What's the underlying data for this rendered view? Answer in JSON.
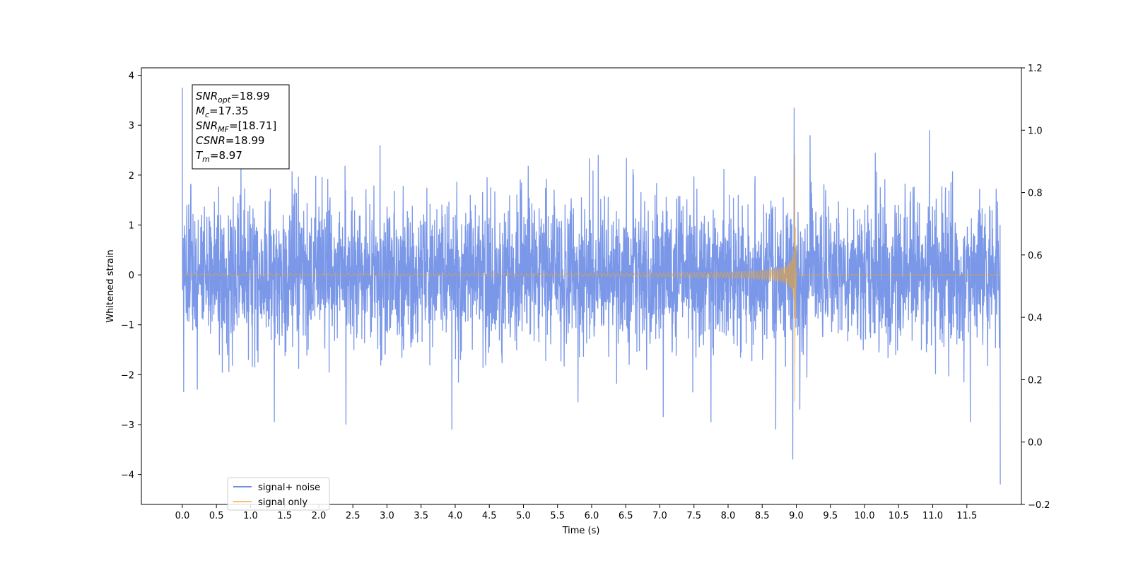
{
  "chart_data": {
    "type": "line",
    "title": "",
    "xlabel": "Time (s)",
    "ylabel": "Whitened strain",
    "xlim": [
      -0.6,
      12.3
    ],
    "ylim": [
      -4.6,
      4.15
    ],
    "ylim_right": [
      -0.2,
      1.2
    ],
    "x_ticks": [
      0.0,
      0.5,
      1.0,
      1.5,
      2.0,
      2.5,
      3.0,
      3.5,
      4.0,
      4.5,
      5.0,
      5.5,
      6.0,
      6.5,
      7.0,
      7.5,
      8.0,
      8.5,
      9.0,
      9.5,
      10.0,
      10.5,
      11.0,
      11.5
    ],
    "x_tick_labels": [
      "0.0",
      "0.5",
      "1.0",
      "1.5",
      "2.0",
      "2.5",
      "3.0",
      "3.5",
      "4.0",
      "4.5",
      "5.0",
      "5.5",
      "6.0",
      "6.5",
      "7.0",
      "7.5",
      "8.0",
      "8.5",
      "9.0",
      "9.5",
      "10.0",
      "10.5",
      "11.0",
      "11.5"
    ],
    "y_ticks": [
      -4,
      -3,
      -2,
      -1,
      0,
      1,
      2,
      3,
      4
    ],
    "y_tick_labels": [
      "−4",
      "−3",
      "−2",
      "−1",
      "0",
      "1",
      "2",
      "3",
      "4"
    ],
    "y_ticks_right": [
      -0.2,
      0.0,
      0.2,
      0.4,
      0.6,
      0.8,
      1.0,
      1.2
    ],
    "y_tick_labels_right": [
      "−0.2",
      "0.0",
      "0.2",
      "0.4",
      "0.6",
      "0.8",
      "1.0",
      "1.2"
    ],
    "grid": false,
    "legend_placement": "lower-left",
    "series": [
      {
        "name": "signal+ noise",
        "color": "#6f8ee6",
        "kind": "noise",
        "x_range": [
          0.0,
          11.99
        ],
        "noise_std": 0.75,
        "peaks": [
          {
            "x": 0.0,
            "y": 3.75
          },
          {
            "x": 0.02,
            "y": -2.35
          },
          {
            "x": 0.22,
            "y": -2.3
          },
          {
            "x": 1.35,
            "y": -2.95
          },
          {
            "x": 2.4,
            "y": -3.0
          },
          {
            "x": 2.9,
            "y": 2.6
          },
          {
            "x": 3.95,
            "y": -3.1
          },
          {
            "x": 5.8,
            "y": -2.55
          },
          {
            "x": 7.05,
            "y": -2.85
          },
          {
            "x": 7.75,
            "y": -2.95
          },
          {
            "x": 8.7,
            "y": -3.1
          },
          {
            "x": 8.95,
            "y": -3.7
          },
          {
            "x": 8.97,
            "y": 3.35
          },
          {
            "x": 9.05,
            "y": -2.7
          },
          {
            "x": 9.2,
            "y": 2.8
          },
          {
            "x": 10.95,
            "y": 2.9
          },
          {
            "x": 11.55,
            "y": -2.95
          },
          {
            "x": 11.99,
            "y": -4.2
          }
        ]
      },
      {
        "name": "signal only",
        "color": "#f5a623",
        "kind": "chirp",
        "x_range": [
          0.0,
          11.99
        ],
        "merger_time": 8.97,
        "peak_amplitude": 3.35
      }
    ],
    "annotation": {
      "lines": [
        {
          "sym": "SNR",
          "sub": "opt",
          "value": "=18.99"
        },
        {
          "sym": "M",
          "sub": "c",
          "value": "=17.35"
        },
        {
          "sym": "SNR",
          "sub": "MF",
          "value": "=[18.71]"
        },
        {
          "sym": "CSNR",
          "sub": "",
          "value": "=18.99"
        },
        {
          "sym": "T",
          "sub": "m",
          "value": "=8.97"
        }
      ]
    }
  }
}
